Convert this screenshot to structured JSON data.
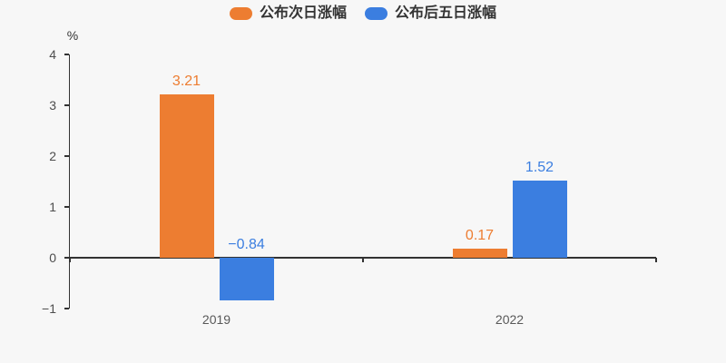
{
  "page": {
    "background": "#f7f7f7"
  },
  "legend": {
    "items": [
      {
        "label": "公布次日涨幅",
        "color": "#ed7d31"
      },
      {
        "label": "公布后五日涨幅",
        "color": "#3b7ee0"
      }
    ]
  },
  "chart_data": {
    "type": "bar",
    "title": "",
    "ylabel": "%",
    "xlabel": "",
    "categories": [
      "2019",
      "2022"
    ],
    "series": [
      {
        "name": "公布次日涨幅",
        "color": "#ed7d31",
        "values": [
          3.21,
          0.17
        ]
      },
      {
        "name": "公布后五日涨幅",
        "color": "#3b7ee0",
        "values": [
          -0.84,
          1.52
        ]
      }
    ],
    "yticks": [
      4,
      3,
      2,
      1,
      0,
      -1
    ],
    "ylim": [
      -1,
      4
    ],
    "grid": false,
    "legend_position": "top",
    "value_labels": true
  }
}
